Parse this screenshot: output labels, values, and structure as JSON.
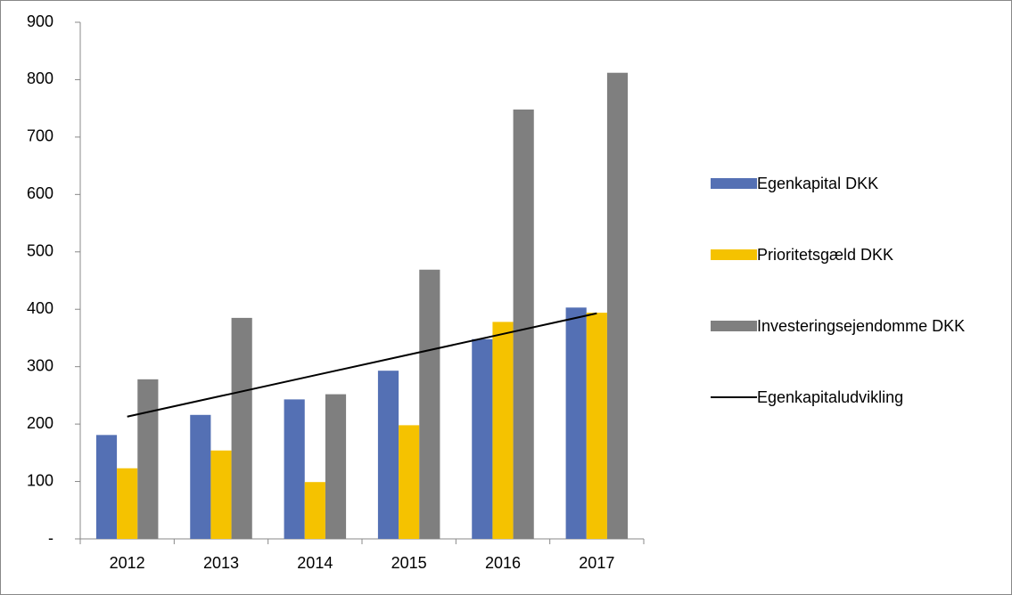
{
  "chart_data": {
    "type": "bar",
    "categories": [
      "2012",
      "2013",
      "2014",
      "2015",
      "2016",
      "2017"
    ],
    "series": [
      {
        "name": "Egenkapital DKK",
        "color": "#5470b4",
        "values": [
          181,
          216,
          243,
          293,
          348,
          403
        ]
      },
      {
        "name": "Prioritetsgæld DKK",
        "color": "#f5c200",
        "values": [
          123,
          154,
          99,
          198,
          378,
          394
        ]
      },
      {
        "name": "Investeringsejendomme DKK",
        "color": "#7f7f7f",
        "values": [
          278,
          385,
          252,
          469,
          748,
          812
        ]
      },
      {
        "name": "Egenkapitaludvikling",
        "type": "line",
        "color": "#000000",
        "values": [
          213,
          249,
          285,
          321,
          357,
          393
        ]
      }
    ],
    "ylim": [
      0,
      900
    ],
    "yticks": [
      {
        "value": 0,
        "label": "-"
      },
      100,
      200,
      300,
      400,
      500,
      600,
      700,
      800,
      900
    ],
    "grid": false,
    "legend": "right"
  }
}
